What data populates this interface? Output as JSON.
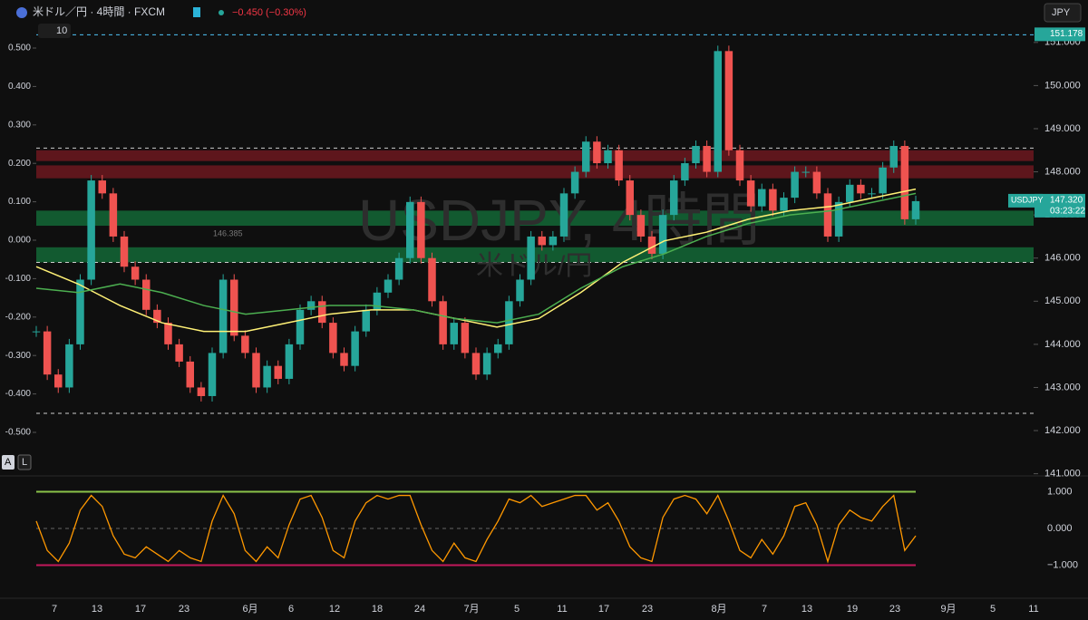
{
  "header": {
    "symbol": "米ドル／円 · 4時間 · FXCM",
    "change": "−0.450 (−0.30%)",
    "indicator_count": "10",
    "currency": "JPY"
  },
  "watermark": {
    "line1": "USDJPY, 4時間",
    "line2": "米ドル/円"
  },
  "annotation": "146.385",
  "toggles": [
    "A",
    "L"
  ],
  "price_axis": {
    "ylim": [
      140.95,
      151.9
    ],
    "ticks": [
      {
        "value": 141,
        "label": "141.000"
      },
      {
        "value": 142,
        "label": "142.000"
      },
      {
        "value": 143,
        "label": "143.000"
      },
      {
        "value": 144,
        "label": "144.000"
      },
      {
        "value": 145,
        "label": "145.000"
      },
      {
        "value": 146,
        "label": "146.000"
      },
      {
        "value": 147,
        "label": "147.000"
      },
      {
        "value": 148,
        "label": "148.000"
      },
      {
        "value": 149,
        "label": "149.000"
      },
      {
        "value": 150,
        "label": "150.000"
      },
      {
        "value": 151,
        "label": "151.000"
      }
    ],
    "badge_high": 151.178,
    "badge_symbol": "USDJPY",
    "badge_last": {
      "value": 147.32,
      "label": "147.320"
    },
    "badge_timer": "03:23:22",
    "dashed_levels": [
      151.178,
      148.55,
      145.9,
      142.4
    ],
    "red_zones": [
      [
        148.25,
        148.5
      ],
      [
        147.85,
        148.15
      ]
    ],
    "green_zones": [
      [
        146.75,
        147.1
      ],
      [
        145.9,
        146.25
      ]
    ]
  },
  "left_axis": {
    "ticks": [
      {
        "value": 0.5,
        "label": "0.500"
      },
      {
        "value": 0.4,
        "label": "0.400"
      },
      {
        "value": 0.3,
        "label": "0.300"
      },
      {
        "value": 0.2,
        "label": "0.200"
      },
      {
        "value": 0.1,
        "label": "0.100"
      },
      {
        "value": 0,
        "label": "0.000"
      },
      {
        "value": -0.1,
        "label": "-0.100"
      },
      {
        "value": -0.2,
        "label": "-0.200"
      },
      {
        "value": -0.3,
        "label": "-0.300"
      },
      {
        "value": -0.4,
        "label": "-0.400"
      },
      {
        "value": -0.5,
        "label": "-0.500"
      }
    ]
  },
  "oscillator": {
    "ticks": [
      {
        "value": 1,
        "label": "1.000"
      },
      {
        "value": 0,
        "label": "0.000"
      },
      {
        "value": -1,
        "label": "−1.000"
      }
    ],
    "values": [
      0.2,
      -0.6,
      -0.9,
      -0.4,
      0.5,
      0.9,
      0.6,
      -0.2,
      -0.7,
      -0.8,
      -0.5,
      -0.7,
      -0.9,
      -0.6,
      -0.8,
      -0.9,
      0.2,
      0.9,
      0.4,
      -0.6,
      -0.9,
      -0.5,
      -0.8,
      0.1,
      0.8,
      0.9,
      0.3,
      -0.6,
      -0.8,
      0.2,
      0.7,
      0.9,
      0.8,
      0.9,
      0.9,
      0.1,
      -0.6,
      -0.9,
      -0.4,
      -0.8,
      -0.9,
      -0.3,
      0.2,
      0.8,
      0.7,
      0.9,
      0.6,
      0.7,
      0.8,
      0.9,
      0.9,
      0.5,
      0.7,
      0.2,
      -0.5,
      -0.8,
      -0.9,
      0.3,
      0.8,
      0.9,
      0.8,
      0.4,
      0.9,
      0.2,
      -0.6,
      -0.8,
      -0.3,
      -0.7,
      -0.2,
      0.6,
      0.7,
      0.1,
      -0.9,
      0.1,
      0.5,
      0.3,
      0.2,
      0.6,
      0.9,
      -0.6,
      -0.2
    ]
  },
  "x_axis": {
    "labels": [
      "7",
      "13",
      "17",
      "23",
      "6月",
      "6",
      "12",
      "18",
      "24",
      "7月",
      "5",
      "11",
      "17",
      "23",
      "8月",
      "7",
      "13",
      "19",
      "23",
      "9月",
      "5",
      "11"
    ]
  },
  "closes": [
    144.3,
    143.3,
    143.0,
    144.0,
    145.5,
    147.8,
    147.5,
    146.5,
    145.8,
    145.5,
    144.8,
    144.5,
    144.0,
    143.6,
    143.0,
    142.8,
    143.8,
    145.5,
    144.2,
    143.8,
    143.0,
    143.5,
    143.2,
    144.0,
    144.8,
    145.0,
    144.5,
    143.8,
    143.5,
    144.3,
    144.8,
    145.2,
    145.5,
    146.0,
    147.3,
    146.0,
    145.0,
    144.0,
    144.5,
    143.8,
    143.3,
    143.8,
    144.0,
    145.0,
    145.5,
    146.5,
    146.3,
    146.5,
    147.5,
    148.0,
    148.7,
    148.2,
    148.5,
    147.8,
    147.0,
    146.5,
    146.1,
    147.0,
    147.8,
    148.2,
    148.6,
    148.0,
    150.8,
    148.5,
    147.8,
    147.2,
    147.6,
    147.1,
    147.4,
    148.0,
    148.0,
    147.5,
    146.5,
    147.3,
    147.7,
    147.5,
    147.5,
    148.1,
    148.6,
    146.9,
    147.32
  ],
  "ma_slow": [
    145.8,
    145.4,
    144.9,
    144.5,
    144.3,
    144.3,
    144.5,
    144.7,
    144.8,
    144.8,
    144.6,
    144.4,
    144.6,
    145.2,
    145.9,
    146.4,
    146.6,
    146.9,
    147.1,
    147.2,
    147.4,
    147.6
  ],
  "ma_fast": [
    145.3,
    145.2,
    145.4,
    145.2,
    144.9,
    144.7,
    144.8,
    144.9,
    144.9,
    144.8,
    144.6,
    144.5,
    144.7,
    145.3,
    145.8,
    146.1,
    146.5,
    146.8,
    147.0,
    147.1,
    147.3,
    147.5
  ]
}
